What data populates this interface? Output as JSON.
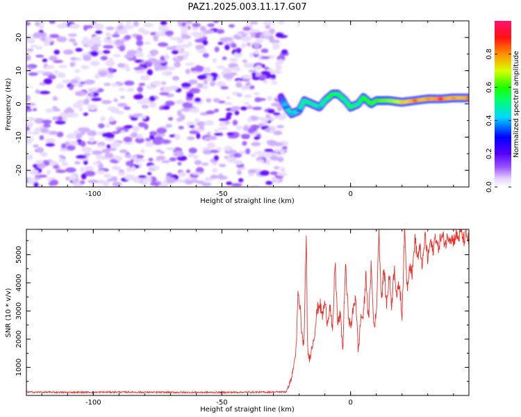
{
  "title": "PAZ1.2025.003.11.17.G07",
  "colors": {
    "snr_line": "#e8302a",
    "axis": "#000000",
    "background": "#ffffff"
  },
  "chart_data": [
    {
      "type": "heatmap",
      "title": "PAZ1.2025.003.11.17.G07",
      "xlabel": "Height of straight line (km)",
      "ylabel": "Frequency (Hz)",
      "xlim": [
        -126,
        46
      ],
      "ylim": [
        -25,
        25
      ],
      "x_ticks": [
        -100,
        -50,
        0
      ],
      "y_ticks": [
        20,
        10,
        0,
        -10,
        -20
      ],
      "grid": false,
      "colorbar": {
        "label": "Normalized spectral amplitude",
        "range": [
          0,
          1
        ],
        "ticks": [
          "0.0",
          "0.2",
          "0.4",
          "0.6",
          "0.8"
        ],
        "colormap": "rainbow (white at 0, purple, blue, cyan, green, yellow, red, magenta at 1)"
      },
      "noise_region": {
        "x_range": [
          -126,
          -27
        ],
        "amplitude": 0.1
      },
      "signal_ridge": {
        "x": [
          -27,
          -25,
          -23,
          -20,
          -18,
          -15,
          -12,
          -10,
          -7,
          -5,
          -2,
          0,
          3,
          5,
          8,
          10,
          15,
          20,
          25,
          30,
          35,
          40,
          46
        ],
        "freq_hz": [
          2,
          -1,
          -3,
          -2,
          1,
          0,
          -1,
          1,
          3,
          3,
          1,
          -1,
          0,
          2,
          0,
          1,
          1,
          0.5,
          1,
          1.5,
          1.5,
          1.8,
          1.8
        ],
        "amplitude": [
          0.15,
          0.35,
          0.4,
          0.35,
          0.45,
          0.45,
          0.4,
          0.45,
          0.55,
          0.5,
          0.45,
          0.5,
          0.45,
          0.55,
          0.6,
          0.6,
          0.65,
          0.75,
          0.85,
          0.8,
          0.9,
          0.8,
          0.85
        ]
      }
    },
    {
      "type": "line",
      "xlabel": "Height of straight line (km)",
      "ylabel": "SNR (10 * v/v)",
      "xlim": [
        -126,
        46
      ],
      "ylim": [
        0,
        5900
      ],
      "x_ticks": [
        -100,
        -50,
        0
      ],
      "y_ticks": [
        1000,
        2000,
        3000,
        4000,
        5000
      ],
      "grid": false,
      "series": [
        {
          "color": "#e8302a",
          "x": [
            -126,
            -110,
            -90,
            -70,
            -50,
            -30,
            -25,
            -23,
            -22,
            -21,
            -20.5,
            -19.5,
            -19,
            -18.5,
            -18,
            -17.2,
            -17,
            -16.8,
            -16.5,
            -16,
            -15,
            -14,
            -13,
            -12,
            -11,
            -10,
            -9,
            -8,
            -7,
            -6,
            -5,
            -4,
            -3,
            -2,
            -1,
            0,
            1,
            2,
            3,
            4,
            5,
            6,
            7,
            8,
            9,
            10,
            11,
            12,
            13,
            14,
            15,
            16,
            17,
            18,
            19,
            20,
            21,
            22,
            23,
            24,
            25,
            26,
            27,
            28,
            29,
            30,
            31,
            32,
            33,
            34,
            35,
            36,
            37,
            38,
            39,
            40,
            41,
            42,
            43,
            44,
            45,
            46
          ],
          "y": [
            120,
            110,
            120,
            110,
            110,
            120,
            130,
            600,
            1100,
            1800,
            3600,
            3000,
            2300,
            1800,
            2100,
            5900,
            4000,
            2000,
            1500,
            1300,
            1700,
            2200,
            3000,
            3300,
            2800,
            3300,
            2600,
            3200,
            2200,
            4800,
            2500,
            2900,
            1600,
            4700,
            3000,
            2400,
            3000,
            3600,
            1500,
            2800,
            2800,
            4300,
            2600,
            4700,
            2500,
            2800,
            5900,
            3400,
            4500,
            3200,
            4300,
            3200,
            4600,
            3500,
            4000,
            2800,
            5900,
            3800,
            4700,
            4300,
            5600,
            4900,
            5200,
            4600,
            5700,
            4800,
            5500,
            5100,
            5700,
            5200,
            5600,
            5600,
            5400,
            5700,
            5600,
            5500,
            5700,
            5600,
            5800,
            5500,
            5700,
            5500
          ]
        }
      ]
    }
  ]
}
